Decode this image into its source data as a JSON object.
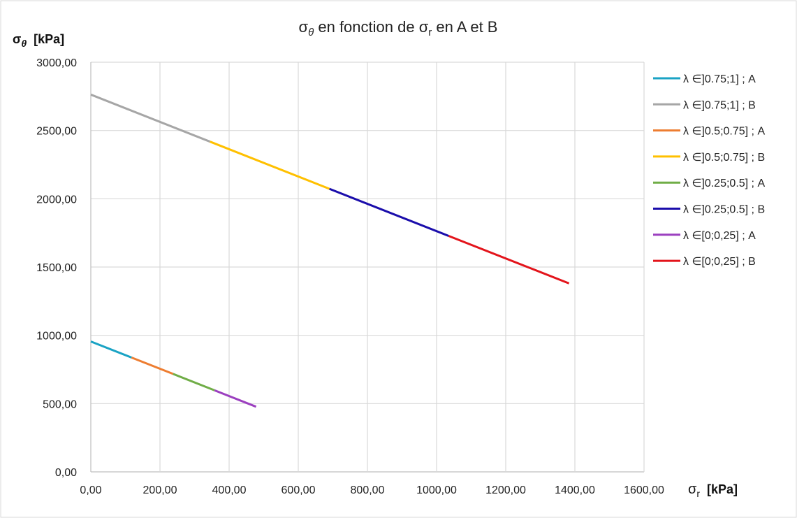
{
  "chart_data": {
    "type": "line",
    "title": "σθ en fonction de σr en A et B",
    "title_main": "σ",
    "title_sub": "θ",
    "title_mid": " en fonction de σ",
    "title_sub2": "r",
    "title_end": " en A et B",
    "ylabel": "σθ [kPa]",
    "ylabel_main": "σ",
    "ylabel_sub": "θ",
    "ylabel_unit": "[kPa]",
    "xlabel": "σr [kPa]",
    "xlabel_main": "σ",
    "xlabel_sub": "r",
    "xlabel_unit": "[kPa]",
    "xlim": [
      0,
      1600
    ],
    "ylim": [
      0,
      3000
    ],
    "x_ticks": [
      "0,00",
      "200,00",
      "400,00",
      "600,00",
      "800,00",
      "1000,00",
      "1200,00",
      "1400,00",
      "1600,00"
    ],
    "y_ticks": [
      "0,00",
      "500,00",
      "1000,00",
      "1500,00",
      "2000,00",
      "2500,00",
      "3000,00"
    ],
    "grid": true,
    "legend_position": "right",
    "series": [
      {
        "name": "λ ∈]0.75;1] ; A",
        "color": "#1AA3C4",
        "x": [
          0,
          118
        ],
        "y": [
          955,
          837
        ]
      },
      {
        "name": "λ ∈]0.75;1] ; B",
        "color": "#A6A6A6",
        "x": [
          0,
          345
        ],
        "y": [
          2763,
          2418
        ]
      },
      {
        "name": "λ ∈]0.5;0.75] ; A",
        "color": "#ED7D31",
        "x": [
          118,
          238
        ],
        "y": [
          837,
          717
        ]
      },
      {
        "name": "λ ∈]0.5;0.75] ; B",
        "color": "#FFC000",
        "x": [
          345,
          690
        ],
        "y": [
          2418,
          2073
        ]
      },
      {
        "name": "λ ∈]0.25;0.5] ; A",
        "color": "#70AD47",
        "x": [
          238,
          358
        ],
        "y": [
          717,
          597
        ]
      },
      {
        "name": "λ ∈]0.25;0.5] ; B",
        "color": "#1A0DAB",
        "x": [
          690,
          1035
        ],
        "y": [
          2073,
          1728
        ]
      },
      {
        "name": "λ ∈[0;0,25] ; A",
        "color": "#9B3FBF",
        "x": [
          358,
          478
        ],
        "y": [
          597,
          477
        ]
      },
      {
        "name": "λ ∈[0;0,25] ; B",
        "color": "#E3141B",
        "x": [
          1035,
          1383
        ],
        "y": [
          1728,
          1380
        ]
      }
    ]
  }
}
